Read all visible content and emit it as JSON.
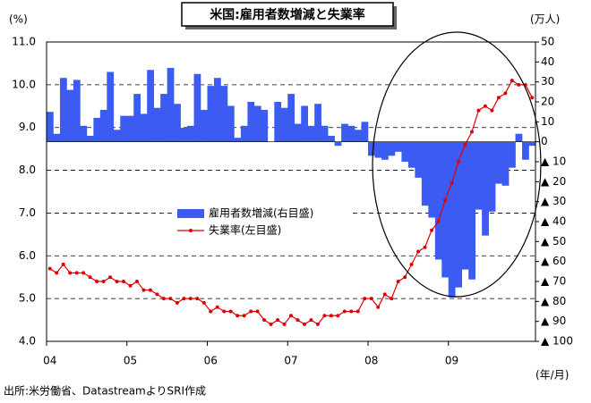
{
  "chart_data": {
    "type": "bar_line",
    "title": "米国:雇用者数増減と失業率",
    "y_unit": "(%)",
    "y2_unit": "(万人)",
    "x_unit": "(年/月)",
    "source": "出所:米労働省、DatastreamよりSRI作成",
    "categories": [
      "04",
      null,
      null,
      null,
      null,
      null,
      null,
      null,
      null,
      null,
      null,
      null,
      "05",
      null,
      null,
      null,
      null,
      null,
      null,
      null,
      null,
      null,
      null,
      null,
      "06",
      null,
      null,
      null,
      null,
      null,
      null,
      null,
      null,
      null,
      null,
      null,
      "07",
      null,
      null,
      null,
      null,
      null,
      null,
      null,
      null,
      null,
      null,
      null,
      "08",
      null,
      null,
      null,
      null,
      null,
      null,
      null,
      null,
      null,
      null,
      null,
      "09",
      null,
      null,
      null,
      null,
      null,
      null,
      null,
      null,
      null,
      null,
      null,
      null
    ],
    "series": [
      {
        "name": "雇用者数増減(右目盛)",
        "color": "#3b5bf2",
        "axis": "y2",
        "kind": "bar",
        "values": [
          15,
          4,
          32,
          26,
          31,
          8,
          3,
          12,
          16,
          35,
          6,
          13,
          13,
          24,
          14,
          36,
          17,
          24,
          37,
          19,
          7,
          8,
          34,
          16,
          28,
          32,
          28,
          18,
          2,
          8,
          20,
          18,
          16,
          0,
          20,
          17,
          24,
          9,
          18,
          8,
          19,
          8,
          3,
          -2,
          9,
          8,
          6,
          10,
          -7,
          -8,
          -9,
          -7,
          -5,
          -10,
          -13,
          -18,
          -32,
          -38,
          -59,
          -68,
          -78,
          -73,
          -64,
          -69,
          -34,
          -47,
          -35,
          -21,
          -22,
          -13,
          4,
          -9,
          -2
        ]
      },
      {
        "name": "失業率(左目盛)",
        "color": "#e00000",
        "kind": "line",
        "values": [
          5.7,
          5.6,
          5.8,
          5.6,
          5.6,
          5.6,
          5.5,
          5.4,
          5.4,
          5.5,
          5.4,
          5.4,
          5.3,
          5.4,
          5.2,
          5.2,
          5.1,
          5.0,
          5.0,
          4.9,
          5.0,
          5.0,
          5.0,
          4.9,
          4.7,
          4.8,
          4.7,
          4.7,
          4.6,
          4.6,
          4.7,
          4.7,
          4.5,
          4.4,
          4.5,
          4.4,
          4.6,
          4.5,
          4.4,
          4.5,
          4.4,
          4.6,
          4.6,
          4.6,
          4.7,
          4.7,
          4.7,
          5.0,
          5.0,
          4.8,
          5.1,
          5.0,
          5.4,
          5.5,
          5.8,
          6.1,
          6.2,
          6.6,
          6.8,
          7.3,
          7.7,
          8.2,
          8.6,
          8.9,
          9.4,
          9.5,
          9.4,
          9.7,
          9.8,
          10.1,
          10.0,
          10.0,
          9.7
        ]
      }
    ],
    "ylim": [
      4,
      11
    ],
    "yticks": [
      {
        "value": 4,
        "label": "4.0"
      },
      {
        "value": 5,
        "label": "5.0"
      },
      {
        "value": 6,
        "label": "6.0"
      },
      {
        "value": 7,
        "label": "7.0"
      },
      {
        "value": 8,
        "label": "8.0"
      },
      {
        "value": 9,
        "label": "9.0"
      },
      {
        "value": 10,
        "label": "10.0"
      },
      {
        "value": 11,
        "label": "11.0"
      }
    ],
    "y2lim": [
      -100,
      50
    ],
    "y2ticks": [
      50,
      40,
      30,
      20,
      10,
      0,
      {
        "value": -10,
        "label": "▲ 10"
      },
      {
        "value": -20,
        "label": "▲ 20"
      },
      {
        "value": -30,
        "label": "▲ 30"
      },
      {
        "value": -40,
        "label": "▲ 40"
      },
      {
        "value": -50,
        "label": "▲ 50"
      },
      {
        "value": -60,
        "label": "▲ 60"
      },
      {
        "value": -70,
        "label": "▲ 70"
      },
      {
        "value": -80,
        "label": "▲ 80"
      },
      {
        "value": -90,
        "label": "▲ 90"
      },
      {
        "value": -100,
        "label": "▲ 100"
      }
    ],
    "grid": true
  }
}
